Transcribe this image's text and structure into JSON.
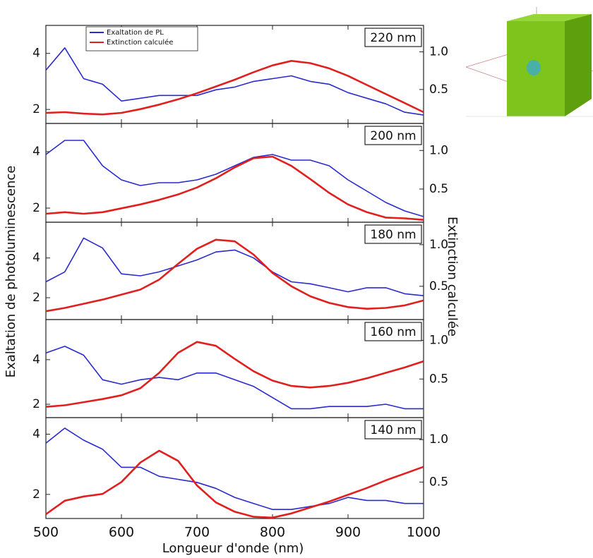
{
  "axes": {
    "x_label": "Longueur d'onde (nm)",
    "y_label": "Exaltation de photoluminescence",
    "y2_label": "Extinction calculée"
  },
  "chart_data": [
    {
      "type": "line",
      "label": "220 nm",
      "x": [
        500,
        525,
        550,
        575,
        600,
        625,
        650,
        675,
        700,
        725,
        750,
        775,
        800,
        825,
        850,
        875,
        900,
        925,
        950,
        975,
        1000
      ],
      "series": [
        {
          "name": "Exaltation de PL",
          "color": "#2a2ad0",
          "values": [
            3.4,
            4.2,
            3.1,
            2.9,
            2.3,
            2.4,
            2.5,
            2.5,
            2.5,
            2.7,
            2.8,
            3.0,
            3.1,
            3.2,
            3.0,
            2.9,
            2.6,
            2.4,
            2.2,
            1.9,
            1.8
          ]
        },
        {
          "name": "Extinction calculée",
          "color": "#e0201f",
          "axis": "y2",
          "values": [
            0.19,
            0.2,
            0.18,
            0.17,
            0.19,
            0.24,
            0.3,
            0.37,
            0.45,
            0.54,
            0.63,
            0.73,
            0.82,
            0.88,
            0.85,
            0.78,
            0.68,
            0.56,
            0.44,
            0.32,
            0.2
          ]
        }
      ],
      "xlim": [
        500,
        1000
      ],
      "xticks": [
        500,
        600,
        700,
        800,
        900,
        1000
      ],
      "ylim": [
        1.5,
        5
      ],
      "yticks": [
        2,
        4
      ],
      "y2lim": [
        0.05,
        1.35
      ],
      "y2ticks": [
        0.5,
        {
          "value": 1,
          "label": "1.0"
        }
      ]
    },
    {
      "type": "line",
      "label": "200 nm",
      "x": [
        500,
        525,
        550,
        575,
        600,
        625,
        650,
        675,
        700,
        725,
        750,
        775,
        800,
        825,
        850,
        875,
        900,
        925,
        950,
        975,
        1000
      ],
      "series": [
        {
          "color": "#2a2ad0",
          "values": [
            3.9,
            4.4,
            4.4,
            3.5,
            3.0,
            2.8,
            2.9,
            2.9,
            3.0,
            3.2,
            3.5,
            3.8,
            3.9,
            3.7,
            3.7,
            3.5,
            3.0,
            2.6,
            2.2,
            1.9,
            1.7
          ]
        },
        {
          "color": "#e0201f",
          "axis": "y2",
          "values": [
            0.18,
            0.2,
            0.18,
            0.2,
            0.25,
            0.3,
            0.36,
            0.43,
            0.52,
            0.64,
            0.78,
            0.9,
            0.92,
            0.8,
            0.63,
            0.45,
            0.3,
            0.2,
            0.13,
            0.12,
            0.1
          ]
        }
      ],
      "xlim": [
        500,
        1000
      ],
      "xticks": [
        500,
        600,
        700,
        800,
        900,
        1000
      ],
      "ylim": [
        1.5,
        5
      ],
      "yticks": [
        2,
        4
      ],
      "y2lim": [
        0.07,
        1.35
      ],
      "y2ticks": [
        0.5,
        {
          "value": 1,
          "label": "1.0"
        }
      ]
    },
    {
      "type": "line",
      "label": "180 nm",
      "x": [
        500,
        525,
        550,
        575,
        600,
        625,
        650,
        675,
        700,
        725,
        750,
        775,
        800,
        825,
        850,
        875,
        900,
        925,
        950,
        975,
        1000
      ],
      "series": [
        {
          "color": "#2a2ad0",
          "values": [
            2.8,
            3.3,
            5.0,
            4.5,
            3.2,
            3.1,
            3.3,
            3.6,
            3.9,
            4.3,
            4.4,
            4.0,
            3.3,
            2.8,
            2.7,
            2.5,
            2.3,
            2.5,
            2.5,
            2.2,
            2.1
          ]
        },
        {
          "color": "#e0201f",
          "axis": "y2",
          "values": [
            0.2,
            0.24,
            0.29,
            0.34,
            0.4,
            0.46,
            0.58,
            0.77,
            0.95,
            1.06,
            1.04,
            0.88,
            0.66,
            0.5,
            0.38,
            0.3,
            0.25,
            0.23,
            0.24,
            0.27,
            0.33
          ]
        }
      ],
      "xlim": [
        500,
        1000
      ],
      "xticks": [
        500,
        600,
        700,
        800,
        900,
        1000
      ],
      "ylim": [
        0.9,
        5.8
      ],
      "yticks": [
        2,
        4
      ],
      "y2lim": [
        0.1,
        1.27
      ],
      "y2ticks": [
        0.5,
        {
          "value": 1,
          "label": "1.0"
        }
      ]
    },
    {
      "type": "line",
      "label": "160 nm",
      "x": [
        500,
        525,
        550,
        575,
        600,
        625,
        650,
        675,
        700,
        725,
        750,
        775,
        800,
        825,
        850,
        875,
        900,
        925,
        950,
        975,
        1000
      ],
      "series": [
        {
          "color": "#2a2ad0",
          "values": [
            4.3,
            4.6,
            4.2,
            3.1,
            2.9,
            3.1,
            3.2,
            3.1,
            3.4,
            3.4,
            3.1,
            2.8,
            2.3,
            1.8,
            1.8,
            1.9,
            1.9,
            1.9,
            2.0,
            1.8,
            1.8
          ]
        },
        {
          "color": "#e0201f",
          "axis": "y2",
          "values": [
            0.14,
            0.16,
            0.2,
            0.24,
            0.29,
            0.38,
            0.58,
            0.84,
            0.98,
            0.93,
            0.76,
            0.6,
            0.48,
            0.41,
            0.39,
            0.41,
            0.45,
            0.51,
            0.58,
            0.65,
            0.73
          ]
        }
      ],
      "xlim": [
        500,
        1000
      ],
      "xticks": [
        500,
        600,
        700,
        800,
        900,
        1000
      ],
      "ylim": [
        1.4,
        5.8
      ],
      "yticks": [
        2,
        4
      ],
      "y2lim": [
        0,
        1.27
      ],
      "y2ticks": [
        0.5,
        {
          "value": 1,
          "label": "1.0"
        }
      ]
    },
    {
      "type": "line",
      "label": "140 nm",
      "x": [
        500,
        525,
        550,
        575,
        600,
        625,
        650,
        675,
        700,
        725,
        750,
        775,
        800,
        825,
        850,
        875,
        900,
        925,
        950,
        975,
        1000
      ],
      "series": [
        {
          "color": "#2a2ad0",
          "values": [
            3.7,
            4.2,
            3.8,
            3.5,
            2.9,
            2.9,
            2.6,
            2.5,
            2.4,
            2.2,
            1.9,
            1.7,
            1.5,
            1.5,
            1.6,
            1.7,
            1.9,
            1.8,
            1.8,
            1.7,
            1.7
          ]
        },
        {
          "color": "#e0201f",
          "axis": "y2",
          "values": [
            0.12,
            0.28,
            0.33,
            0.36,
            0.5,
            0.73,
            0.87,
            0.75,
            0.46,
            0.26,
            0.15,
            0.09,
            0.08,
            0.13,
            0.2,
            0.27,
            0.35,
            0.43,
            0.52,
            0.6,
            0.68
          ]
        }
      ],
      "xlim": [
        500,
        1000
      ],
      "xticks": [
        500,
        600,
        700,
        800,
        900,
        1000
      ],
      "ylim": [
        1.2,
        4.55
      ],
      "yticks": [
        2,
        4
      ],
      "y2lim": [
        0.07,
        1.26
      ],
      "y2ticks": [
        0.5,
        {
          "value": 1,
          "label": "1.0"
        }
      ]
    }
  ]
}
